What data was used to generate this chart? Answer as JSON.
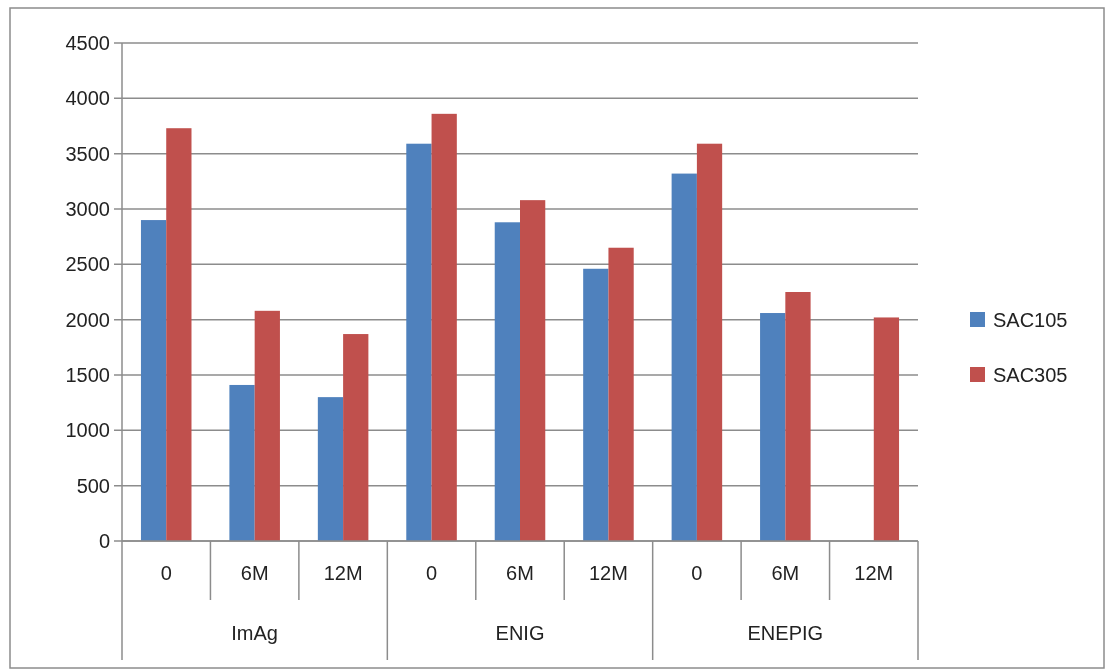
{
  "chart_data": {
    "type": "bar",
    "categories": [
      "0",
      "6M",
      "12M",
      "0",
      "6M",
      "12M",
      "0",
      "6M",
      "12M"
    ],
    "annotations": [
      "ImAg",
      "ENIG",
      "ENEPIG"
    ],
    "series": [
      {
        "name": "SAC105",
        "color": "#4f81bd",
        "values": [
          2900,
          1410,
          1300,
          3590,
          2880,
          2460,
          3320,
          2060,
          null
        ]
      },
      {
        "name": "SAC305",
        "color": "#c0504d",
        "values": [
          3730,
          2080,
          1870,
          3860,
          3080,
          2650,
          3590,
          2250,
          2020
        ]
      }
    ],
    "ylim": [
      0,
      4500
    ],
    "yticks": [
      0,
      500,
      1000,
      1500,
      2000,
      2500,
      3000,
      3500,
      4000,
      4500
    ],
    "grid": "y",
    "legend": "right"
  }
}
